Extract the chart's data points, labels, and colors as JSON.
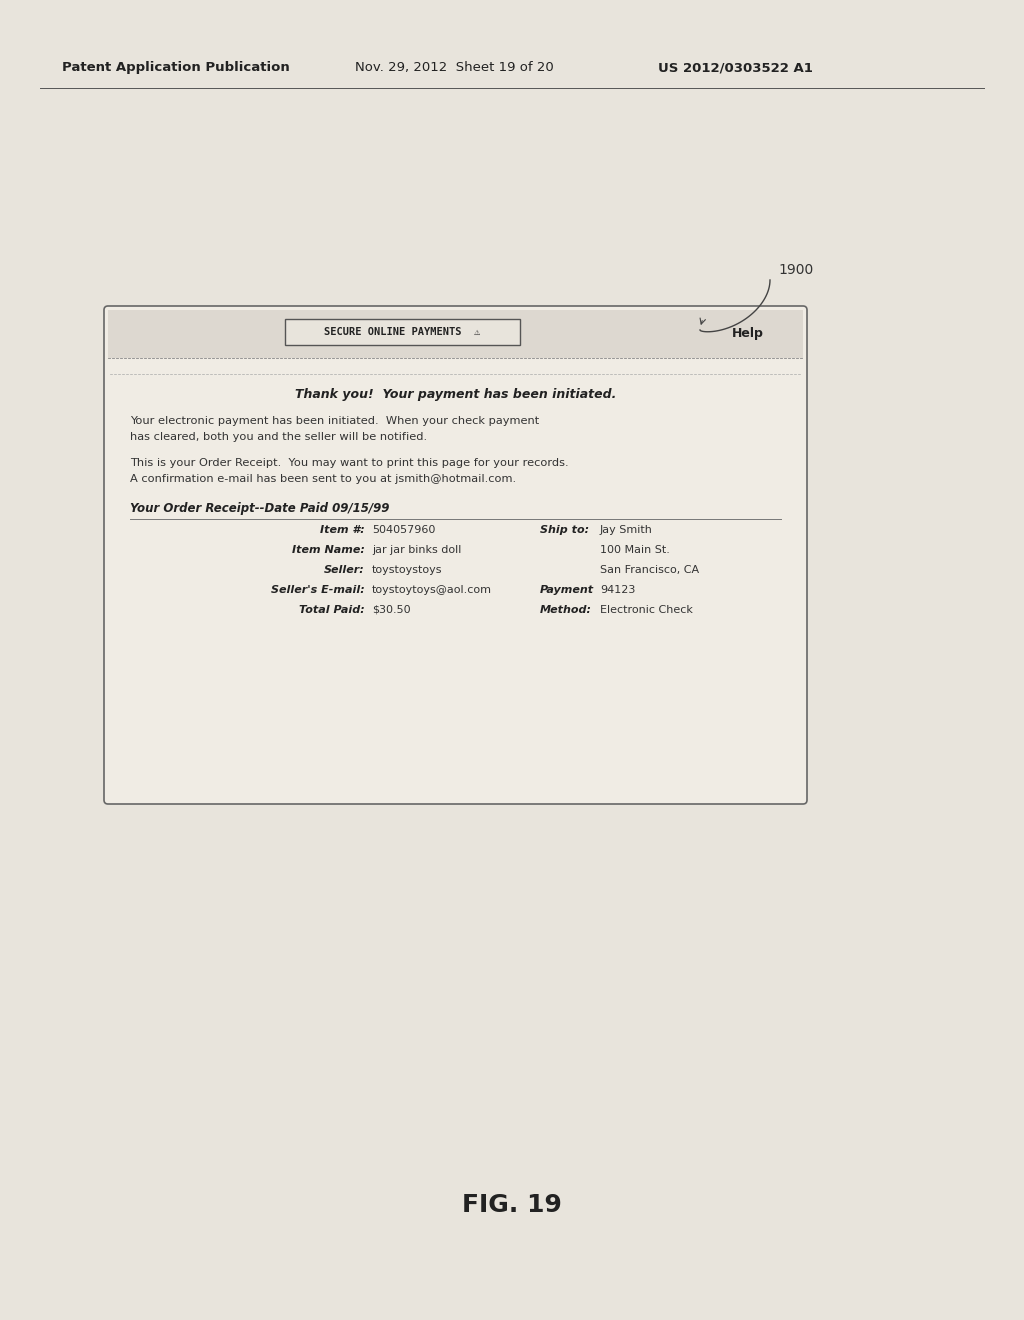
{
  "bg_color": "#d8d4cc",
  "page_color": "#e8e4dc",
  "header_left": "Patent Application Publication",
  "header_mid": "Nov. 29, 2012  Sheet 19 of 20",
  "header_right": "US 2012/0303522 A1",
  "figure_label": "FIG. 19",
  "callout_label": "1900",
  "browser_title_btn": "SECURE ONLINE PAYMENTS  ⚠",
  "browser_help": "Help",
  "thank_you_text": "Thank you!  Your payment has been initiated.",
  "para1_line1": "Your electronic payment has been initiated.  When your check payment",
  "para1_line2": "has cleared, both you and the seller will be notified.",
  "para2_line1": "This is your Order Receipt.  You may want to print this page for your records.",
  "para2_line2": "A confirmation e-mail has been sent to you at jsmith@hotmail.com.",
  "receipt_header": "Your Order Receipt--Date Paid 09/15/99",
  "item_number_label": "Item #:",
  "item_number_value": "504057960",
  "item_name_label": "Item Name:",
  "item_name_value": "jar jar binks doll",
  "seller_label": "Seller:",
  "seller_value": "toystoystoys",
  "seller_email_label": "Seller's E-mail:",
  "seller_email_value": "toystoytoys@aol.com",
  "total_paid_label": "Total Paid:",
  "total_paid_value": "$30.50",
  "ship_to_label": "Ship to:",
  "ship_name": "Jay Smith",
  "ship_addr1": "100 Main St.",
  "ship_addr2": "San Francisco, CA",
  "ship_addr3": "94123",
  "payment_label1": "Payment",
  "payment_label2": "Method:",
  "payment_value": "Electronic Check"
}
